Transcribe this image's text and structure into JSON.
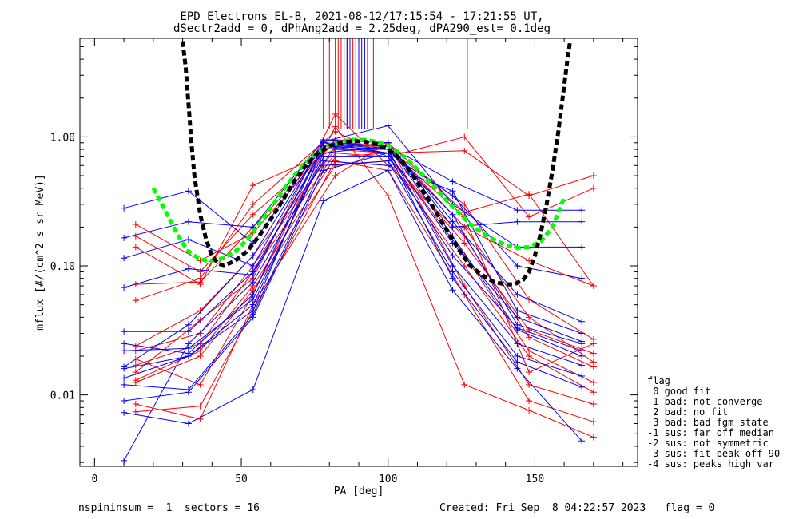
{
  "header": {
    "title_line1": "EPD Electrons EL-B, 2021-08-12/17:15:54 - 17:21:55 UT,",
    "title_line2": "dSectr2add = 0, dPhAng2add = 2.25deg, dPA290_est=   0.1deg"
  },
  "footer": {
    "left": "nspininsum =  1  sectors = 16",
    "right": "Created: Fri Sep  8 04:22:57 2023   flag = 0"
  },
  "legend": {
    "title": "flag",
    "items": [
      " 0 good fit",
      " 1 bad: not converge",
      " 2 bad: no fit",
      " 3 bad: bad fgm state",
      "-1 sus: far off median",
      "-2 sus: not symmetric",
      "-3 sus: fit peak off 90",
      "-4 sus: peaks high var"
    ]
  },
  "colors": {
    "red_series": "#ff0000",
    "blue_series": "#0000ff",
    "fit_black": "#000000",
    "fit_green": "#00ff00"
  },
  "chart_data": {
    "type": "line",
    "title": "EPD Electrons EL-B, 2021-08-12/17:15:54 - 17:21:55 UT,",
    "subtitle": "dSectr2add = 0, dPhAng2add = 2.25deg, dPA290_est=   0.1deg",
    "xlabel": "PA [deg]",
    "ylabel": "mflux [#/(cm^2 s sr MeV)]",
    "xlim": [
      -5,
      185
    ],
    "ylim": [
      0.0028,
      5.8
    ],
    "yscale": "log",
    "xticks": [
      0,
      50,
      100,
      150
    ],
    "xtick_labels": [
      "0",
      "50",
      "100",
      "150"
    ],
    "yticks": [
      0.01,
      0.1,
      1.0
    ],
    "ytick_labels": [
      "0.01",
      "0.10",
      "1.00"
    ],
    "grid": false,
    "legend_position": "right-bottom-outside",
    "pa_columns": [
      10,
      14,
      32,
      36,
      54,
      78,
      82,
      100,
      122,
      126,
      144,
      148,
      166,
      170
    ],
    "series": [
      {
        "color": "red",
        "x": [
          14,
          36,
          54,
          82,
          100,
          126,
          148,
          170
        ],
        "y": [
          0.072,
          0.075,
          0.2,
          0.95,
          0.9,
          0.26,
          0.36,
          0.07
        ]
      },
      {
        "color": "red",
        "x": [
          14,
          36,
          54,
          82,
          100,
          126,
          148,
          170
        ],
        "y": [
          0.17,
          0.09,
          0.25,
          0.9,
          0.85,
          0.2,
          0.11,
          0.07
        ]
      },
      {
        "color": "red",
        "x": [
          14,
          36,
          54,
          82,
          100,
          126,
          148,
          170
        ],
        "y": [
          0.054,
          0.08,
          0.3,
          1.1,
          0.7,
          1.0,
          0.24,
          0.4
        ]
      },
      {
        "color": "red",
        "x": [
          14,
          36,
          54,
          82,
          100,
          126,
          148,
          170
        ],
        "y": [
          0.14,
          0.072,
          0.42,
          0.8,
          0.75,
          0.78,
          0.35,
          0.5
        ]
      },
      {
        "color": "red",
        "x": [
          14,
          36,
          54,
          82,
          100,
          126,
          148,
          170
        ],
        "y": [
          0.024,
          0.045,
          0.12,
          0.8,
          0.8,
          0.3,
          0.055,
          0.027
        ]
      },
      {
        "color": "red",
        "x": [
          14,
          36,
          54,
          82,
          100,
          126,
          148,
          170
        ],
        "y": [
          0.022,
          0.03,
          0.1,
          0.85,
          0.85,
          0.2,
          0.04,
          0.018
        ]
      },
      {
        "color": "red",
        "x": [
          14,
          36,
          54,
          82,
          100,
          126,
          148,
          170
        ],
        "y": [
          0.017,
          0.025,
          0.09,
          0.75,
          0.7,
          0.15,
          0.032,
          0.021
        ]
      },
      {
        "color": "red",
        "x": [
          14,
          36,
          54,
          82,
          100,
          126,
          148,
          170
        ],
        "y": [
          0.015,
          0.038,
          0.08,
          1.5,
          0.6,
          0.17,
          0.028,
          0.0165
        ]
      },
      {
        "color": "red",
        "x": [
          14,
          36,
          54,
          82,
          100,
          126,
          148,
          170
        ],
        "y": [
          0.013,
          0.022,
          0.07,
          0.7,
          0.75,
          0.12,
          0.022,
          0.0125
        ]
      },
      {
        "color": "red",
        "x": [
          14,
          36,
          54,
          82,
          100,
          126,
          148,
          170
        ],
        "y": [
          0.0125,
          0.02,
          0.065,
          0.6,
          0.65,
          0.1,
          0.02,
          0.0105
        ]
      },
      {
        "color": "red",
        "x": [
          14,
          36,
          54,
          82,
          100,
          126,
          148,
          170
        ],
        "y": [
          0.0085,
          0.0065,
          0.05,
          0.5,
          0.9,
          0.07,
          0.012,
          0.0085
        ]
      },
      {
        "color": "red",
        "x": [
          14,
          36,
          54,
          82,
          100,
          126,
          148,
          170
        ],
        "y": [
          0.0074,
          0.0082,
          0.045,
          0.65,
          0.55,
          0.06,
          0.009,
          0.0062
        ]
      },
      {
        "color": "red",
        "x": [
          14,
          36,
          54,
          82,
          100,
          126,
          148,
          170
        ],
        "y": [
          0.019,
          0.012,
          0.06,
          1.2,
          0.35,
          0.012,
          0.0076,
          0.0047
        ]
      },
      {
        "color": "red",
        "x": [
          14,
          36,
          54,
          82,
          100,
          126,
          148,
          170
        ],
        "y": [
          0.21,
          0.11,
          0.18,
          0.95,
          0.8,
          0.24,
          0.015,
          0.025
        ]
      },
      {
        "color": "blue",
        "x": [
          10,
          32,
          54,
          78,
          100,
          122,
          144,
          166
        ],
        "y": [
          0.28,
          0.38,
          0.15,
          0.9,
          0.85,
          0.45,
          0.27,
          0.27
        ]
      },
      {
        "color": "blue",
        "x": [
          10,
          32,
          54,
          78,
          100,
          122,
          144,
          166
        ],
        "y": [
          0.165,
          0.22,
          0.2,
          0.95,
          0.9,
          0.2,
          0.22,
          0.22
        ]
      },
      {
        "color": "blue",
        "x": [
          10,
          32,
          54,
          78,
          100,
          122,
          144,
          166
        ],
        "y": [
          0.115,
          0.16,
          0.1,
          0.92,
          1.22,
          0.3,
          0.14,
          0.14
        ]
      },
      {
        "color": "blue",
        "x": [
          10,
          32,
          54,
          78,
          100,
          122,
          144,
          166
        ],
        "y": [
          0.068,
          0.095,
          0.085,
          0.85,
          0.75,
          0.35,
          0.1,
          0.08
        ]
      },
      {
        "color": "blue",
        "x": [
          10,
          32,
          54,
          78,
          100,
          122,
          144,
          166
        ],
        "y": [
          0.031,
          0.031,
          0.09,
          0.8,
          0.9,
          0.22,
          0.06,
          0.037
        ]
      },
      {
        "color": "blue",
        "x": [
          10,
          32,
          54,
          78,
          100,
          122,
          144,
          166
        ],
        "y": [
          0.025,
          0.021,
          0.06,
          0.9,
          0.75,
          0.15,
          0.04,
          0.026
        ]
      },
      {
        "color": "blue",
        "x": [
          10,
          32,
          54,
          78,
          100,
          122,
          144,
          166
        ],
        "y": [
          0.022,
          0.023,
          0.055,
          0.7,
          0.7,
          0.12,
          0.033,
          0.022
        ]
      },
      {
        "color": "blue",
        "x": [
          10,
          32,
          54,
          78,
          100,
          122,
          144,
          166
        ],
        "y": [
          0.016,
          0.02,
          0.05,
          0.75,
          0.85,
          0.17,
          0.032,
          0.02
        ]
      },
      {
        "color": "blue",
        "x": [
          10,
          32,
          54,
          78,
          100,
          122,
          144,
          166
        ],
        "y": [
          0.0135,
          0.02,
          0.045,
          0.85,
          0.8,
          0.1,
          0.025,
          0.017
        ]
      },
      {
        "color": "blue",
        "x": [
          10,
          32,
          54,
          78,
          100,
          122,
          144,
          166
        ],
        "y": [
          0.012,
          0.011,
          0.042,
          0.6,
          0.65,
          0.09,
          0.02,
          0.014
        ]
      },
      {
        "color": "blue",
        "x": [
          10,
          32,
          54,
          78,
          100,
          122,
          144,
          166
        ],
        "y": [
          0.009,
          0.0105,
          0.04,
          0.55,
          0.75,
          0.08,
          0.018,
          0.0115
        ]
      },
      {
        "color": "blue",
        "x": [
          10,
          32,
          54,
          78,
          100,
          122,
          144,
          166
        ],
        "y": [
          0.0073,
          0.006,
          0.011,
          0.32,
          0.55,
          0.065,
          0.016,
          0.0044
        ]
      },
      {
        "color": "blue",
        "x": [
          10,
          32,
          54,
          78,
          100,
          122,
          144,
          166
        ],
        "y": [
          0.0031,
          0.025,
          0.075,
          0.65,
          0.6,
          0.38,
          0.045,
          0.03
        ]
      },
      {
        "color": "blue",
        "x": [
          10,
          32,
          54,
          78,
          100,
          122,
          144,
          166
        ],
        "y": [
          0.0165,
          0.035,
          0.12,
          0.9,
          0.8,
          0.25,
          0.035,
          0.025
        ]
      }
    ],
    "vertical_spikes": {
      "red_x": [
        78,
        80,
        82,
        83,
        84,
        86,
        88,
        90,
        92,
        95,
        127
      ],
      "blue_x": [
        78,
        85,
        86,
        87,
        89,
        90,
        91,
        92,
        93
      ],
      "y_bottom": [
        1.15,
        1.15
      ]
    },
    "fit_black": {
      "x": [
        30,
        31,
        32,
        33,
        34,
        36,
        38,
        40,
        42,
        44,
        48,
        52,
        56,
        60,
        64,
        68,
        72,
        76,
        80,
        84,
        88,
        92,
        96,
        100,
        104,
        108,
        112,
        116,
        120,
        124,
        128,
        132,
        136,
        140,
        143,
        146,
        148,
        150,
        152,
        154,
        156,
        158,
        160,
        161,
        162
      ],
      "y": [
        5.5,
        3.5,
        1.8,
        0.9,
        0.5,
        0.25,
        0.16,
        0.12,
        0.105,
        0.1,
        0.11,
        0.13,
        0.17,
        0.23,
        0.32,
        0.45,
        0.6,
        0.75,
        0.85,
        0.9,
        0.93,
        0.92,
        0.88,
        0.8,
        0.68,
        0.52,
        0.38,
        0.27,
        0.19,
        0.135,
        0.1,
        0.085,
        0.075,
        0.072,
        0.072,
        0.078,
        0.09,
        0.12,
        0.18,
        0.3,
        0.55,
        1.1,
        2.5,
        3.8,
        5.5
      ]
    },
    "fit_green": {
      "x": [
        20,
        22,
        24,
        26,
        28,
        30,
        32,
        34,
        36,
        38,
        40,
        44,
        48,
        52,
        56,
        60,
        64,
        68,
        72,
        76,
        80,
        84,
        88,
        92,
        96,
        100,
        104,
        108,
        112,
        116,
        120,
        124,
        128,
        132,
        136,
        140,
        144,
        148,
        152,
        156,
        158,
        160
      ],
      "y": [
        0.4,
        0.33,
        0.27,
        0.22,
        0.18,
        0.15,
        0.13,
        0.12,
        0.113,
        0.11,
        0.11,
        0.115,
        0.13,
        0.16,
        0.21,
        0.28,
        0.38,
        0.5,
        0.63,
        0.76,
        0.86,
        0.92,
        0.95,
        0.95,
        0.92,
        0.86,
        0.75,
        0.62,
        0.5,
        0.4,
        0.32,
        0.26,
        0.21,
        0.18,
        0.16,
        0.145,
        0.138,
        0.14,
        0.155,
        0.2,
        0.26,
        0.34
      ]
    }
  }
}
